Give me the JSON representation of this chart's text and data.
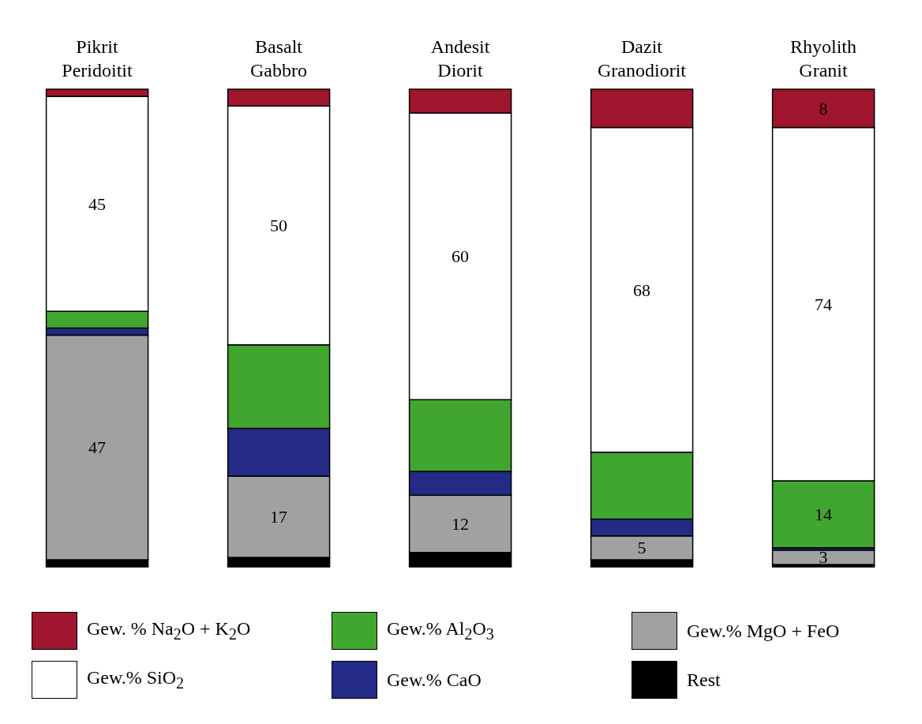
{
  "chart_data": {
    "type": "bar",
    "stacked": true,
    "legend": "bottom",
    "categories": [
      "Pikrit\nPeridoitit",
      "Basalt\nGabbro",
      "Andesit\nDiorit",
      "Dazit\nGranodiorit",
      "Rhyolith\nGranit"
    ],
    "series": [
      {
        "name": "Rest",
        "color": "#000000",
        "values": [
          1.5,
          2,
          3,
          1.5,
          0.5
        ],
        "value_labels": [
          null,
          null,
          null,
          null,
          null
        ]
      },
      {
        "name": "Gew.% MgO + FeO",
        "color": "#a0a1a3",
        "values": [
          47,
          17,
          12,
          5,
          3
        ],
        "value_labels": [
          "47",
          "17",
          "12",
          "5",
          "3"
        ]
      },
      {
        "name": "Gew.% CaO",
        "color": "#232b86",
        "values": [
          1.5,
          10,
          5,
          3.5,
          0.5
        ],
        "value_labels": [
          null,
          null,
          null,
          null,
          null
        ]
      },
      {
        "name": "Gew.% Al$_{2}$O$_{3}$",
        "color": "#41a62f",
        "values": [
          3.5,
          17.5,
          15,
          14,
          14
        ],
        "value_labels": [
          null,
          null,
          null,
          null,
          "14"
        ]
      },
      {
        "name": "Gew.% SiO$_{2}$",
        "color": "#ffffff",
        "values": [
          45,
          50,
          60,
          68,
          74
        ],
        "value_labels": [
          "45",
          "50",
          "60",
          "68",
          "74"
        ]
      },
      {
        "name": "Gew. % Na$_{2}$O + K$_{2}$O",
        "color": "#a0162f",
        "values": [
          1.5,
          3.5,
          5,
          8,
          8
        ],
        "value_labels": [
          null,
          null,
          null,
          null,
          "8"
        ]
      }
    ]
  }
}
